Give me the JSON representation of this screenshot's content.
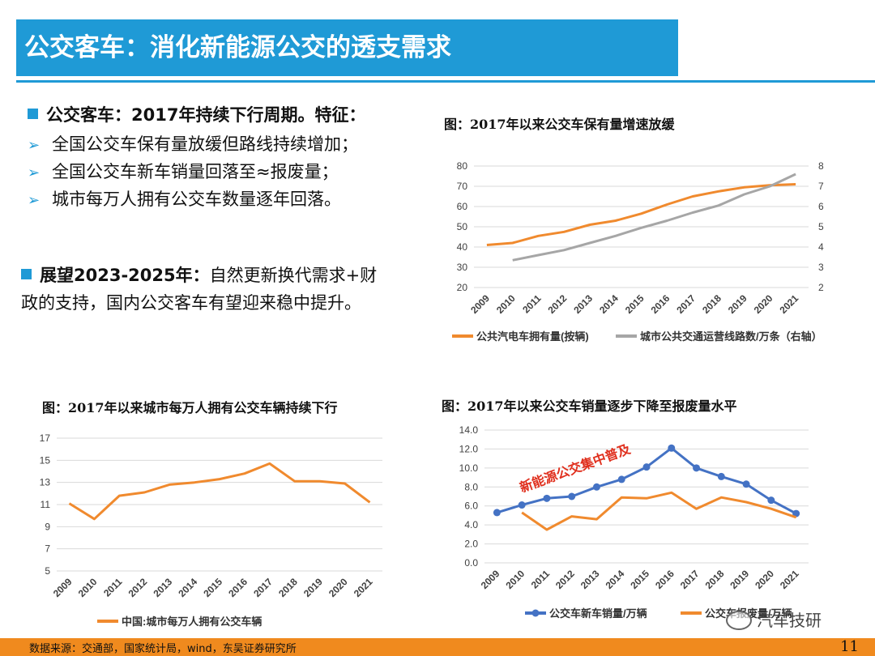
{
  "header": {
    "title": "公交客车：消化新能源公交的透支需求"
  },
  "left_text": {
    "section1": {
      "heading": "公交客车：2017年持续下行周期。特征：",
      "bullets": [
        "全国公交车保有量放缓但路线持续增加；",
        "全国公交车新车销量回落至≈报废量；",
        "城市每万人拥有公交车数量逐年回落。"
      ]
    },
    "section2": {
      "heading": "展望2023-2025年：",
      "line1_rest": "自然更新换代需求+财",
      "line2": "政的支持，国内公交客车有望迎来稳中提升。"
    }
  },
  "chart_titles": {
    "c1": "图：2017年以来公交车保有量增速放缓",
    "c2": "图：2017年以来城市每万人拥有公交车辆持续下行",
    "c3": "图：2017年以来公交车销量逐步下降至报废量水平"
  },
  "chart_data": [
    {
      "type": "line",
      "categories": [
        "2009",
        "2010",
        "2011",
        "2012",
        "2013",
        "2014",
        "2015",
        "2016",
        "2017",
        "2018",
        "2019",
        "2020",
        "2021"
      ],
      "series": [
        {
          "name": "公共汽电车拥有量(按辆)",
          "axis": "left",
          "color": "#f08a2e",
          "values": [
            41,
            42,
            45.5,
            47.5,
            51,
            53,
            56.5,
            61,
            65,
            67.5,
            69.5,
            70.5,
            71
          ]
        },
        {
          "name": "城市公共交通运营线路数/万条（右轴）",
          "axis": "right",
          "color": "#a6a6a6",
          "values": [
            null,
            3.35,
            3.6,
            3.85,
            4.2,
            4.55,
            4.95,
            5.3,
            5.7,
            6.05,
            6.6,
            7.0,
            7.6
          ]
        }
      ],
      "ylim": [
        20,
        80
      ],
      "yticks": [
        "20",
        "30",
        "40",
        "50",
        "60",
        "70",
        "80"
      ],
      "y2lim": [
        2,
        8
      ],
      "y2ticks": [
        "2",
        "3",
        "4",
        "5",
        "6",
        "7",
        "8"
      ],
      "legend": "bottom",
      "grid": true
    },
    {
      "type": "line",
      "categories": [
        "2009",
        "2010",
        "2011",
        "2012",
        "2013",
        "2014",
        "2015",
        "2016",
        "2017",
        "2018",
        "2019",
        "2020",
        "2021"
      ],
      "series": [
        {
          "name": "中国:城市每万人拥有公交车辆",
          "color": "#f08a2e",
          "values": [
            11.1,
            9.7,
            11.8,
            12.1,
            12.8,
            13.0,
            13.3,
            13.8,
            14.7,
            13.1,
            13.1,
            12.9,
            11.2
          ]
        }
      ],
      "ylim": [
        5,
        17
      ],
      "yticks": [
        "5",
        "7",
        "9",
        "11",
        "13",
        "15",
        "17"
      ],
      "legend": "bottom",
      "grid": true
    },
    {
      "type": "line",
      "categories": [
        "2009",
        "2010",
        "2011",
        "2012",
        "2013",
        "2014",
        "2015",
        "2016",
        "2017",
        "2018",
        "2019",
        "2020",
        "2021"
      ],
      "series": [
        {
          "name": "公交车新车销量/万辆",
          "color": "#4472c4",
          "markers": true,
          "values": [
            5.3,
            6.1,
            6.8,
            7.0,
            8.0,
            8.8,
            10.1,
            12.1,
            10.0,
            9.1,
            8.3,
            6.6,
            5.2
          ]
        },
        {
          "name": "公交车报废量/万辆",
          "color": "#f08a2e",
          "values": [
            null,
            5.3,
            3.5,
            4.9,
            4.6,
            6.9,
            6.8,
            7.4,
            5.7,
            6.9,
            6.4,
            5.7,
            4.8
          ]
        }
      ],
      "ylim": [
        0,
        14
      ],
      "yticks": [
        "0.0",
        "2.0",
        "4.0",
        "6.0",
        "8.0",
        "10.0",
        "12.0",
        "14.0"
      ],
      "annotation": "新能源公交集中普及",
      "legend": "bottom",
      "grid": true
    }
  ],
  "footer": {
    "source": "数据来源：交通部，国家统计局，wind，东吴证券研究所",
    "page": "11"
  },
  "watermark": "汽车技研"
}
